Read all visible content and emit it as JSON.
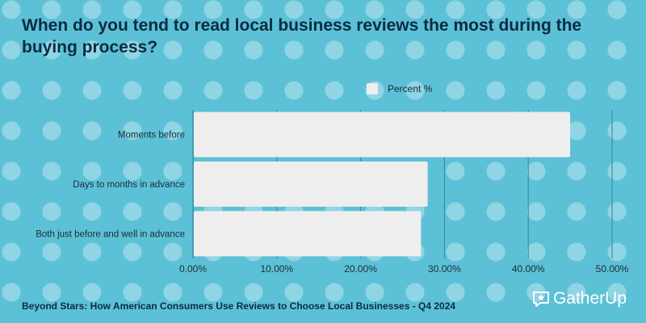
{
  "title": "When do you tend to read local business reviews the most during the buying process?",
  "legend": {
    "label": "Percent %"
  },
  "footer": {
    "source": "Beyond Stars: How American Consumers Use Reviews to Choose Local Businesses - Q4 2024"
  },
  "brand": {
    "name": "GatherUp",
    "icon": "chat-star-icon"
  },
  "colors": {
    "background": "#5cc1d7",
    "bar": "#eeeeee",
    "gridline": "#3d8fa4",
    "title": "#0b2b3f"
  },
  "chart_data": {
    "type": "bar",
    "orientation": "horizontal",
    "categories": [
      "Moments before",
      "Days to months in advance",
      "Both just before and well in advance"
    ],
    "series": [
      {
        "name": "Percent %",
        "values": [
          0.45,
          0.28,
          0.272
        ]
      }
    ],
    "xlim": [
      0,
      0.5
    ],
    "xticks": [
      0,
      0.1,
      0.2,
      0.3,
      0.4,
      0.5
    ],
    "xtick_labels": [
      "0.00%",
      "10.00%",
      "20.00%",
      "30.00%",
      "40.00%",
      "50.00%"
    ],
    "legend_position": "top",
    "grid": true
  }
}
